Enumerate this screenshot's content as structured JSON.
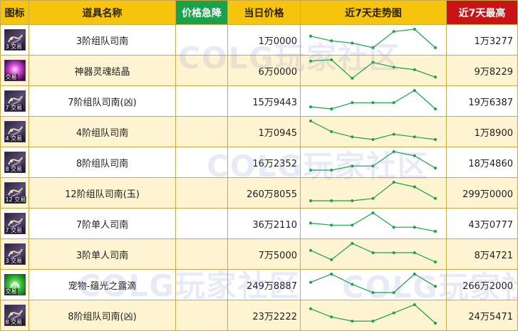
{
  "header": {
    "icon": "图标",
    "name": "道具名称",
    "drop": "价格急降",
    "price": "当日价格",
    "trend": "近7天走势图",
    "high": "近7天最高"
  },
  "watermark": "COLG玩家社区",
  "colors": {
    "header": "#f6c40c",
    "drop": "#1aa24b",
    "high": "#c81414",
    "line": "#1aa24b"
  },
  "items": [
    {
      "icon": "book-icon",
      "icon_tag": "3 交易",
      "name": "3阶组队司南",
      "drop": "",
      "price": "1万0000",
      "high": "1万3277",
      "trend": [
        6,
        4,
        3,
        1,
        8,
        9,
        1
      ]
    },
    {
      "icon": "crystal-icon",
      "icon_tag": "交易",
      "name": "神器灵魂结晶",
      "drop": "",
      "price": "6万0000",
      "high": "9万8229",
      "trend": [
        8,
        8.5,
        1,
        7.5,
        5.5,
        4.5,
        1.5
      ]
    },
    {
      "icon": "book-icon",
      "icon_tag": "7 交易",
      "name": "7阶组队司南(凶)",
      "drop": "",
      "price": "15万9443",
      "high": "19万6387",
      "trend": [
        2,
        1,
        4,
        4,
        4,
        10,
        1
      ]
    },
    {
      "icon": "book-icon",
      "icon_tag": "4 交易",
      "name": "4阶组队司南",
      "drop": "",
      "price": "1万0945",
      "high": "1万8900",
      "trend": [
        9,
        5,
        3,
        2,
        4,
        3,
        2
      ]
    },
    {
      "icon": "book-icon",
      "icon_tag": "8 交易",
      "name": "8阶组队司南",
      "drop": "",
      "price": "16万2352",
      "high": "18万4860",
      "trend": [
        1,
        1,
        3,
        3,
        10,
        8,
        2
      ]
    },
    {
      "icon": "book-icon",
      "icon_tag": "12 交易",
      "name": "12阶组队司南(玉)",
      "drop": "",
      "price": "260万8055",
      "high": "299万0000",
      "trend": [
        1,
        1,
        1,
        2,
        9,
        7,
        2
      ]
    },
    {
      "icon": "book-icon",
      "icon_tag": "7 交易",
      "name": "7阶单人司南",
      "drop": "",
      "price": "36万2110",
      "high": "43万0777",
      "trend": [
        5,
        4,
        4,
        10,
        3,
        3,
        1
      ]
    },
    {
      "icon": "book-icon",
      "icon_tag": "3 交易",
      "name": "3阶单人司南",
      "drop": "",
      "price": "7万5000",
      "high": "8万4721",
      "trend": [
        6,
        2,
        9,
        5,
        5,
        5,
        1
      ]
    },
    {
      "icon": "drop-pet-icon",
      "icon_tag": "交易",
      "name": "宠物-蕴光之露滴",
      "drop": "",
      "price": "249万8887",
      "high": "266万2000",
      "trend": [
        6,
        10,
        5,
        1,
        1,
        10,
        4
      ]
    },
    {
      "icon": "book-icon",
      "icon_tag": "8 交易",
      "name": "8阶组队司南(凶)",
      "drop": "",
      "price": "23万2222",
      "high": "24万5471",
      "trend": [
        8,
        4,
        2,
        2,
        6,
        10,
        1
      ]
    }
  ]
}
